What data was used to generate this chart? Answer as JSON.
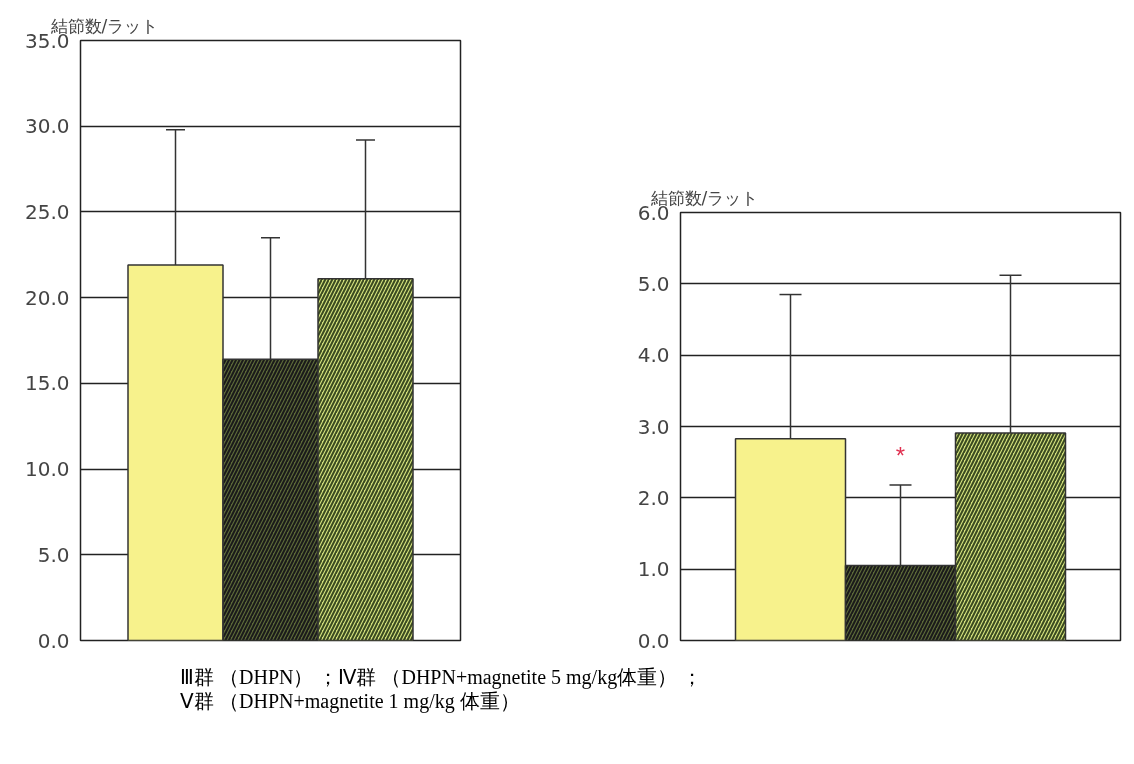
{
  "chart_data": [
    {
      "type": "bar",
      "ylabel": "結節数/ラット",
      "categories": [
        null,
        null,
        null
      ],
      "values": [
        21.9,
        16.4,
        21.1
      ],
      "errors": [
        [
          21.9,
          29.8
        ],
        [
          16.4,
          23.5
        ],
        [
          21.1,
          29.2
        ]
      ],
      "colors": [
        "#f7f28c",
        "#5c6a38",
        "#d2e07c"
      ],
      "ylim": [
        0,
        35
      ],
      "yticks": [
        {
          "value": 0,
          "label": "0.0"
        },
        {
          "value": 5,
          "label": "5.0"
        },
        {
          "value": 10,
          "label": "10.0"
        },
        {
          "value": 15,
          "label": "15.0"
        },
        {
          "value": 20,
          "label": "20.0"
        },
        {
          "value": 25,
          "label": "25.0"
        },
        {
          "value": 30,
          "label": "30.0"
        },
        {
          "value": 35,
          "label": "35.0"
        }
      ],
      "grid": "y",
      "tick_labels": "y"
    },
    {
      "type": "bar",
      "ylabel": "結節数/ラット",
      "categories": [
        null,
        null,
        null
      ],
      "values": [
        2.83,
        1.05,
        2.91
      ],
      "errors": [
        [
          2.83,
          4.85
        ],
        [
          1.05,
          2.18
        ],
        [
          2.91,
          5.12
        ]
      ],
      "colors": [
        "#f7f28c",
        "#5c6a38",
        "#d2e07c"
      ],
      "ylim": [
        0,
        6
      ],
      "yticks": [
        {
          "value": 0,
          "label": "0.0"
        },
        {
          "value": 1,
          "label": "1.0"
        },
        {
          "value": 2,
          "label": "2.0"
        },
        {
          "value": 3,
          "label": "3.0"
        },
        {
          "value": 4,
          "label": "4.0"
        },
        {
          "value": 5,
          "label": "5.0"
        },
        {
          "value": 6,
          "label": "6.0"
        }
      ],
      "grid": "y",
      "tick_labels": "y",
      "annotations": [
        "*",
        "Ⅲ群 （DHPN） ；Ⅳ群 （DHPN+magnetite 5 mg/kg体重） ；",
        "Ⅴ群 （DHPN+magnetite 1 mg/kg 体重）"
      ]
    }
  ]
}
